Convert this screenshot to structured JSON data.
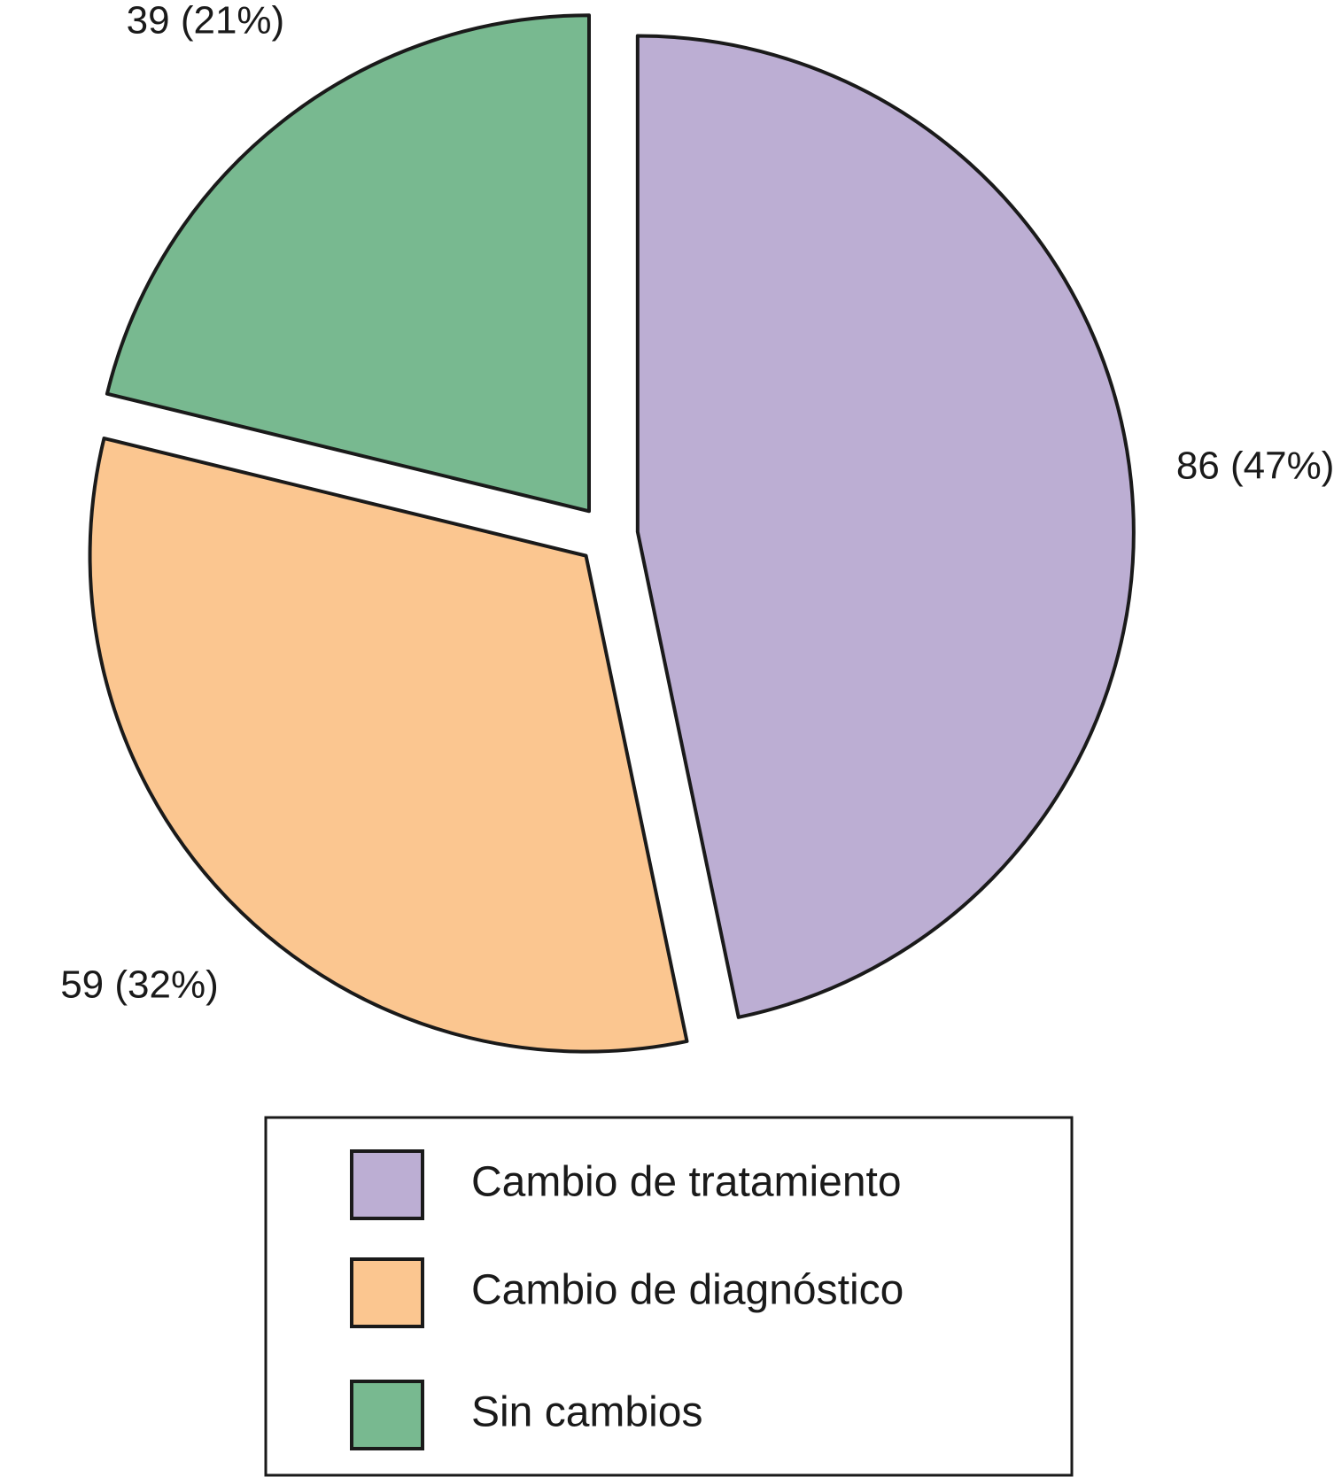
{
  "chart_data": {
    "type": "pie",
    "slices": [
      {
        "label": "Cambio de tratamiento",
        "value": 86,
        "percent": 47,
        "value_label": "86 (47%)",
        "color": "#bcaed3"
      },
      {
        "label": "Cambio de diagnóstico",
        "value": 59,
        "percent": 32,
        "value_label": "59 (32%)",
        "color": "#fbc690"
      },
      {
        "label": "Sin cambios",
        "value": 39,
        "percent": 21,
        "value_label": "39 (21%)",
        "color": "#78b990"
      }
    ],
    "exploded": true,
    "legend": {
      "placement": "bottom"
    }
  }
}
